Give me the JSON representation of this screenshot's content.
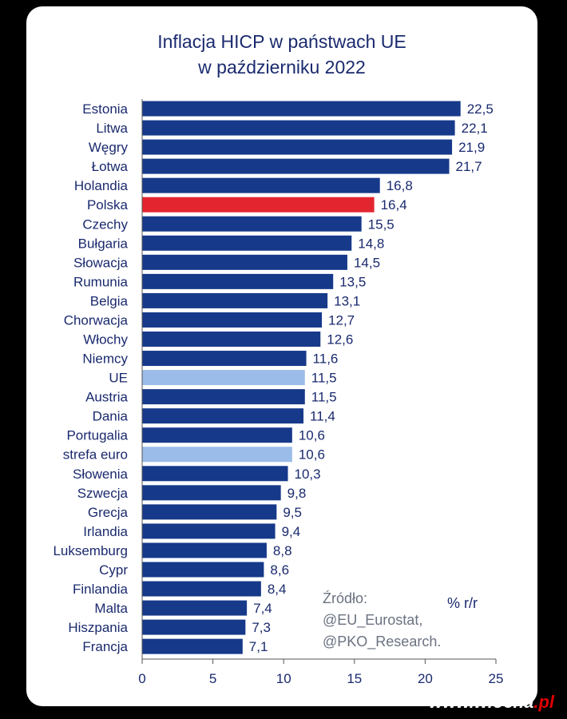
{
  "title_line1": "Inflacja HICP w państwach UE",
  "title_line2": "w październiku 2022",
  "source_lines": [
    "Źródło:",
    "@EU_Eurostat,",
    "@PKO_Research."
  ],
  "unit_label": "% r/r",
  "watermark": {
    "name": "www.wiocha",
    "domain": ".pl"
  },
  "colors": {
    "bar": "#16398a",
    "highlight": "#e3252f",
    "aggregate": "#9bbbe8",
    "label": "#1a2a6e",
    "axis": "#555555",
    "source_text": "#6b7280"
  },
  "chart_data": {
    "type": "bar",
    "orientation": "horizontal",
    "title": "Inflacja HICP w państwach UE w październiku 2022",
    "xlim": [
      0,
      25
    ],
    "xticks": [
      0,
      5,
      10,
      15,
      20,
      25
    ],
    "grid": false,
    "categories": [
      "Estonia",
      "Litwa",
      "Węgry",
      "Łotwa",
      "Holandia",
      "Polska",
      "Czechy",
      "Bułgaria",
      "Słowacja",
      "Rumunia",
      "Belgia",
      "Chorwacja",
      "Włochy",
      "Niemcy",
      "UE",
      "Austria",
      "Dania",
      "Portugalia",
      "strefa euro",
      "Słowenia",
      "Szwecja",
      "Grecja",
      "Irlandia",
      "Luksemburg",
      "Cypr",
      "Finlandia",
      "Malta",
      "Hiszpania",
      "Francja"
    ],
    "values": [
      22.5,
      22.1,
      21.9,
      21.7,
      16.8,
      16.4,
      15.5,
      14.8,
      14.5,
      13.5,
      13.1,
      12.7,
      12.6,
      11.6,
      11.5,
      11.5,
      11.4,
      10.6,
      10.6,
      10.3,
      9.8,
      9.5,
      9.4,
      8.8,
      8.6,
      8.4,
      7.4,
      7.3,
      7.1
    ],
    "value_labels": [
      "22,5",
      "22,1",
      "21,9",
      "21,7",
      "16,8",
      "16,4",
      "15,5",
      "14,8",
      "14,5",
      "13,5",
      "13,1",
      "12,7",
      "12,6",
      "11,6",
      "11,5",
      "11,5",
      "11,4",
      "10,6",
      "10,6",
      "10,3",
      "9,8",
      "9,5",
      "9,4",
      "8,8",
      "8,6",
      "8,4",
      "7,4",
      "7,3",
      "7,1"
    ],
    "highlight": [
      "Polska"
    ],
    "aggregates": [
      "UE",
      "strefa euro"
    ]
  }
}
